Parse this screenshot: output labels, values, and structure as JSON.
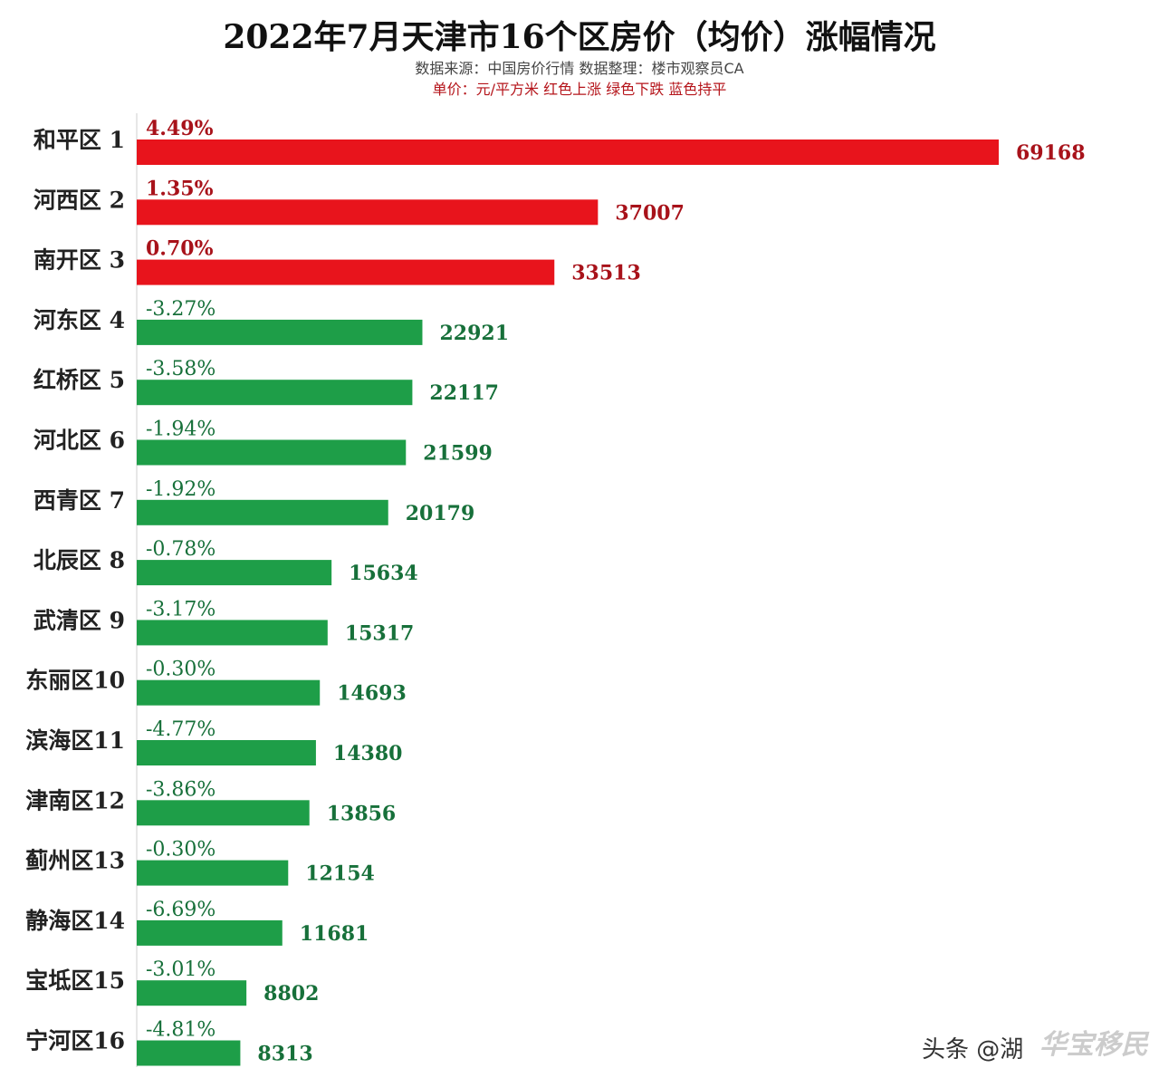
{
  "chart_data": {
    "type": "bar",
    "orientation": "horizontal",
    "title": "2022年7月天津市16个区房价（均价）涨幅情况",
    "subtitle_source": "数据来源：中国房价行情   数据整理：楼市观察员CA",
    "subtitle_legend": "单价：元/平方米   红色上涨  绿色下跌  蓝色持平",
    "categories": [
      "和平区 1",
      "河西区 2",
      "南开区 3",
      "河东区 4",
      "红桥区 5",
      "河北区 6",
      "西青区 7",
      "北辰区 8",
      "武清区 9",
      "东丽区10",
      "滨海区11",
      "津南区12",
      "蓟州区13",
      "静海区14",
      "宝坻区15",
      "宁河区16"
    ],
    "values": [
      69168,
      37007,
      33513,
      22921,
      22117,
      21599,
      20179,
      15634,
      15317,
      14693,
      14380,
      13856,
      12154,
      11681,
      8802,
      8313
    ],
    "change_labels": [
      "4.49%",
      "1.35%",
      "0.70%",
      "-3.27%",
      "-3.58%",
      "-1.94%",
      "-1.92%",
      "-0.78%",
      "-3.17%",
      "-0.30%",
      "-4.77%",
      "-3.86%",
      "-0.30%",
      "-6.69%",
      "-3.01%",
      "-4.81%"
    ],
    "xlim": [
      0,
      70000
    ],
    "grid": false,
    "colors": {
      "up": "#e8141c",
      "down": "#1e9e48",
      "up_text": "#a8121a",
      "down_text": "#17703a"
    }
  },
  "watermark": {
    "text": "头条 @湖",
    "mark": "华宝移民"
  }
}
